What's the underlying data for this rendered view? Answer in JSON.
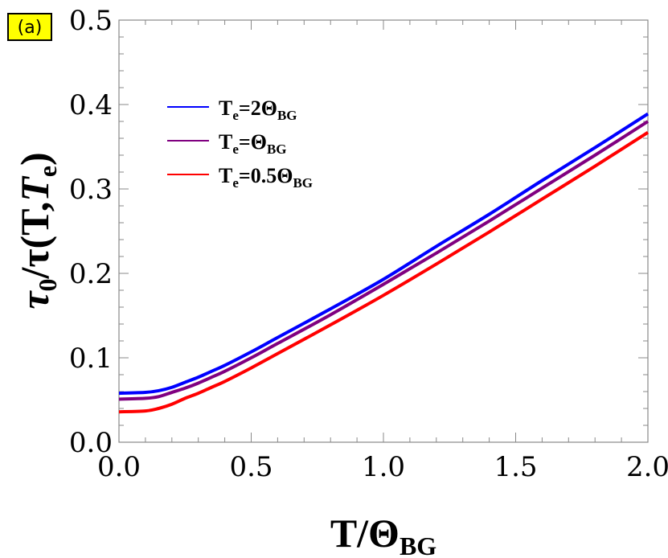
{
  "panel_label": "(a)",
  "panel_label_bg": "#ffff00",
  "chart_data": {
    "type": "line",
    "xlabel": {
      "main": "T/Θ",
      "sub": "BG"
    },
    "ylabel": {
      "main": "τ",
      "sub0": "0",
      "mid": "/τ(T,",
      "italic": "T",
      "sub1": "e",
      "end": ")"
    },
    "xlim": [
      0,
      2
    ],
    "ylim": [
      0,
      0.5
    ],
    "xticks": [
      0,
      0.5,
      1,
      1.5,
      2
    ],
    "xtick_labels": [
      "0.0",
      "0.5",
      "1.0",
      "1.5",
      "2.0"
    ],
    "yticks": [
      0,
      0.1,
      0.2,
      0.3,
      0.4,
      0.5
    ],
    "ytick_labels": [
      "0.0",
      "0.1",
      "0.2",
      "0.3",
      "0.4",
      "0.5"
    ],
    "grid": false,
    "legend_position": "top-left",
    "series": [
      {
        "name": "Te=2ΘBG",
        "label_parts": {
          "a": "T",
          "b": "e",
          "c": "=2Θ",
          "d": "BG"
        },
        "color": "#0000ff",
        "x": [
          0,
          0.1,
          0.15,
          0.2,
          0.25,
          0.3,
          0.35,
          0.4,
          0.5,
          0.6,
          0.8,
          1.0,
          1.2,
          1.4,
          1.6,
          1.8,
          2.0
        ],
        "y": [
          0.058,
          0.059,
          0.061,
          0.065,
          0.071,
          0.077,
          0.084,
          0.091,
          0.107,
          0.124,
          0.158,
          0.193,
          0.232,
          0.27,
          0.31,
          0.349,
          0.389
        ]
      },
      {
        "name": "Te=ΘBG",
        "label_parts": {
          "a": "T",
          "b": "e",
          "c": "=Θ",
          "d": "BG"
        },
        "color": "#800080",
        "x": [
          0,
          0.1,
          0.15,
          0.2,
          0.25,
          0.3,
          0.35,
          0.4,
          0.5,
          0.6,
          0.8,
          1.0,
          1.2,
          1.4,
          1.6,
          1.8,
          2.0
        ],
        "y": [
          0.051,
          0.052,
          0.054,
          0.059,
          0.064,
          0.07,
          0.077,
          0.084,
          0.1,
          0.117,
          0.151,
          0.187,
          0.224,
          0.262,
          0.301,
          0.34,
          0.38
        ]
      },
      {
        "name": "Te=0.5ΘBG",
        "label_parts": {
          "a": "T",
          "b": "e",
          "c": "=0.5Θ",
          "d": "BG"
        },
        "color": "#ff0000",
        "x": [
          0,
          0.1,
          0.15,
          0.2,
          0.25,
          0.3,
          0.35,
          0.4,
          0.5,
          0.6,
          0.8,
          1.0,
          1.2,
          1.4,
          1.6,
          1.8,
          2.0
        ],
        "y": [
          0.036,
          0.037,
          0.04,
          0.045,
          0.052,
          0.058,
          0.065,
          0.072,
          0.088,
          0.105,
          0.139,
          0.174,
          0.211,
          0.249,
          0.288,
          0.327,
          0.367
        ]
      }
    ]
  }
}
